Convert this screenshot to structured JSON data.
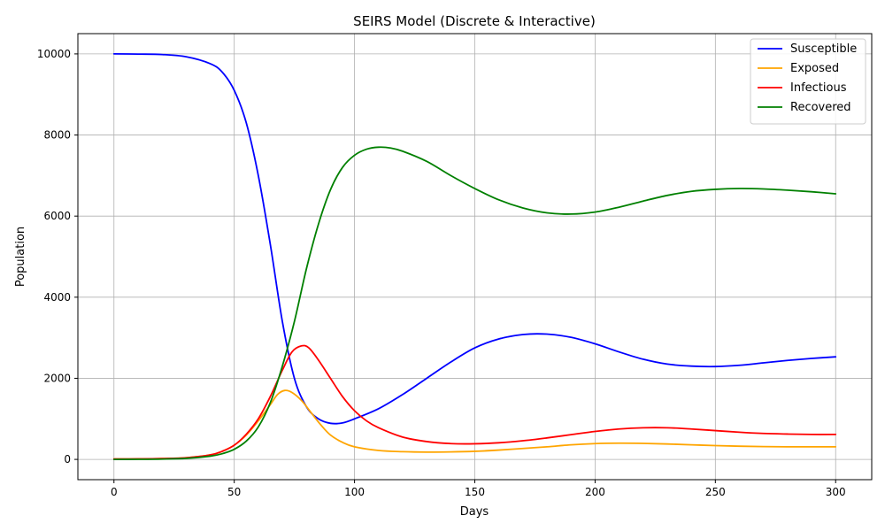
{
  "chart_data": {
    "type": "line",
    "title": "SEIRS Model (Discrete & Interactive)",
    "xlabel": "Days",
    "ylabel": "Population",
    "xlim": [
      -15,
      315
    ],
    "ylim": [
      -500,
      10500
    ],
    "xticks": [
      0,
      50,
      100,
      150,
      200,
      250,
      300
    ],
    "yticks": [
      0,
      2000,
      4000,
      6000,
      8000,
      10000
    ],
    "grid": true,
    "legend_position": "top-right",
    "series": [
      {
        "name": "Susceptible",
        "color": "#0000ff",
        "points": [
          [
            0,
            10000
          ],
          [
            10,
            9995
          ],
          [
            20,
            9985
          ],
          [
            30,
            9930
          ],
          [
            40,
            9760
          ],
          [
            45,
            9550
          ],
          [
            50,
            9100
          ],
          [
            55,
            8300
          ],
          [
            60,
            7000
          ],
          [
            65,
            5300
          ],
          [
            70,
            3400
          ],
          [
            75,
            2000
          ],
          [
            80,
            1300
          ],
          [
            85,
            1000
          ],
          [
            90,
            890
          ],
          [
            95,
            900
          ],
          [
            100,
            1000
          ],
          [
            110,
            1250
          ],
          [
            120,
            1600
          ],
          [
            130,
            2000
          ],
          [
            140,
            2400
          ],
          [
            150,
            2750
          ],
          [
            160,
            2970
          ],
          [
            170,
            3080
          ],
          [
            180,
            3090
          ],
          [
            190,
            3010
          ],
          [
            200,
            2850
          ],
          [
            210,
            2650
          ],
          [
            220,
            2470
          ],
          [
            230,
            2350
          ],
          [
            240,
            2300
          ],
          [
            250,
            2290
          ],
          [
            260,
            2320
          ],
          [
            270,
            2380
          ],
          [
            280,
            2440
          ],
          [
            290,
            2490
          ],
          [
            300,
            2530
          ]
        ]
      },
      {
        "name": "Exposed",
        "color": "#ffa500",
        "points": [
          [
            0,
            10
          ],
          [
            10,
            12
          ],
          [
            20,
            20
          ],
          [
            30,
            40
          ],
          [
            40,
            110
          ],
          [
            45,
            200
          ],
          [
            50,
            350
          ],
          [
            55,
            600
          ],
          [
            60,
            950
          ],
          [
            65,
            1350
          ],
          [
            68,
            1600
          ],
          [
            71,
            1700
          ],
          [
            74,
            1650
          ],
          [
            78,
            1450
          ],
          [
            82,
            1150
          ],
          [
            86,
            850
          ],
          [
            90,
            600
          ],
          [
            95,
            420
          ],
          [
            100,
            310
          ],
          [
            110,
            220
          ],
          [
            120,
            190
          ],
          [
            130,
            180
          ],
          [
            140,
            185
          ],
          [
            150,
            200
          ],
          [
            160,
            230
          ],
          [
            170,
            270
          ],
          [
            180,
            310
          ],
          [
            190,
            360
          ],
          [
            200,
            390
          ],
          [
            210,
            400
          ],
          [
            220,
            395
          ],
          [
            230,
            380
          ],
          [
            240,
            360
          ],
          [
            250,
            340
          ],
          [
            260,
            325
          ],
          [
            270,
            315
          ],
          [
            280,
            310
          ],
          [
            290,
            310
          ],
          [
            300,
            310
          ]
        ]
      },
      {
        "name": "Infectious",
        "color": "#ff0000",
        "points": [
          [
            0,
            10
          ],
          [
            10,
            12
          ],
          [
            20,
            20
          ],
          [
            30,
            40
          ],
          [
            40,
            110
          ],
          [
            45,
            200
          ],
          [
            50,
            350
          ],
          [
            55,
            620
          ],
          [
            60,
            1000
          ],
          [
            65,
            1550
          ],
          [
            70,
            2200
          ],
          [
            74,
            2650
          ],
          [
            78,
            2800
          ],
          [
            81,
            2750
          ],
          [
            85,
            2450
          ],
          [
            90,
            2000
          ],
          [
            95,
            1550
          ],
          [
            100,
            1200
          ],
          [
            105,
            950
          ],
          [
            110,
            780
          ],
          [
            120,
            550
          ],
          [
            130,
            440
          ],
          [
            140,
            390
          ],
          [
            150,
            385
          ],
          [
            160,
            410
          ],
          [
            170,
            460
          ],
          [
            180,
            530
          ],
          [
            190,
            610
          ],
          [
            200,
            690
          ],
          [
            210,
            750
          ],
          [
            220,
            780
          ],
          [
            230,
            780
          ],
          [
            240,
            750
          ],
          [
            250,
            710
          ],
          [
            260,
            670
          ],
          [
            270,
            640
          ],
          [
            280,
            625
          ],
          [
            290,
            615
          ],
          [
            300,
            615
          ]
        ]
      },
      {
        "name": "Recovered",
        "color": "#008000",
        "points": [
          [
            0,
            0
          ],
          [
            10,
            2
          ],
          [
            20,
            8
          ],
          [
            30,
            25
          ],
          [
            40,
            80
          ],
          [
            45,
            140
          ],
          [
            50,
            250
          ],
          [
            55,
            450
          ],
          [
            60,
            800
          ],
          [
            65,
            1400
          ],
          [
            70,
            2300
          ],
          [
            75,
            3400
          ],
          [
            80,
            4700
          ],
          [
            85,
            5800
          ],
          [
            90,
            6650
          ],
          [
            95,
            7200
          ],
          [
            100,
            7500
          ],
          [
            105,
            7650
          ],
          [
            110,
            7700
          ],
          [
            115,
            7680
          ],
          [
            120,
            7600
          ],
          [
            130,
            7350
          ],
          [
            140,
            7000
          ],
          [
            150,
            6680
          ],
          [
            160,
            6400
          ],
          [
            170,
            6200
          ],
          [
            180,
            6080
          ],
          [
            190,
            6050
          ],
          [
            200,
            6100
          ],
          [
            210,
            6220
          ],
          [
            220,
            6370
          ],
          [
            230,
            6510
          ],
          [
            240,
            6610
          ],
          [
            250,
            6660
          ],
          [
            260,
            6680
          ],
          [
            270,
            6670
          ],
          [
            280,
            6640
          ],
          [
            290,
            6600
          ],
          [
            300,
            6550
          ]
        ]
      }
    ]
  }
}
